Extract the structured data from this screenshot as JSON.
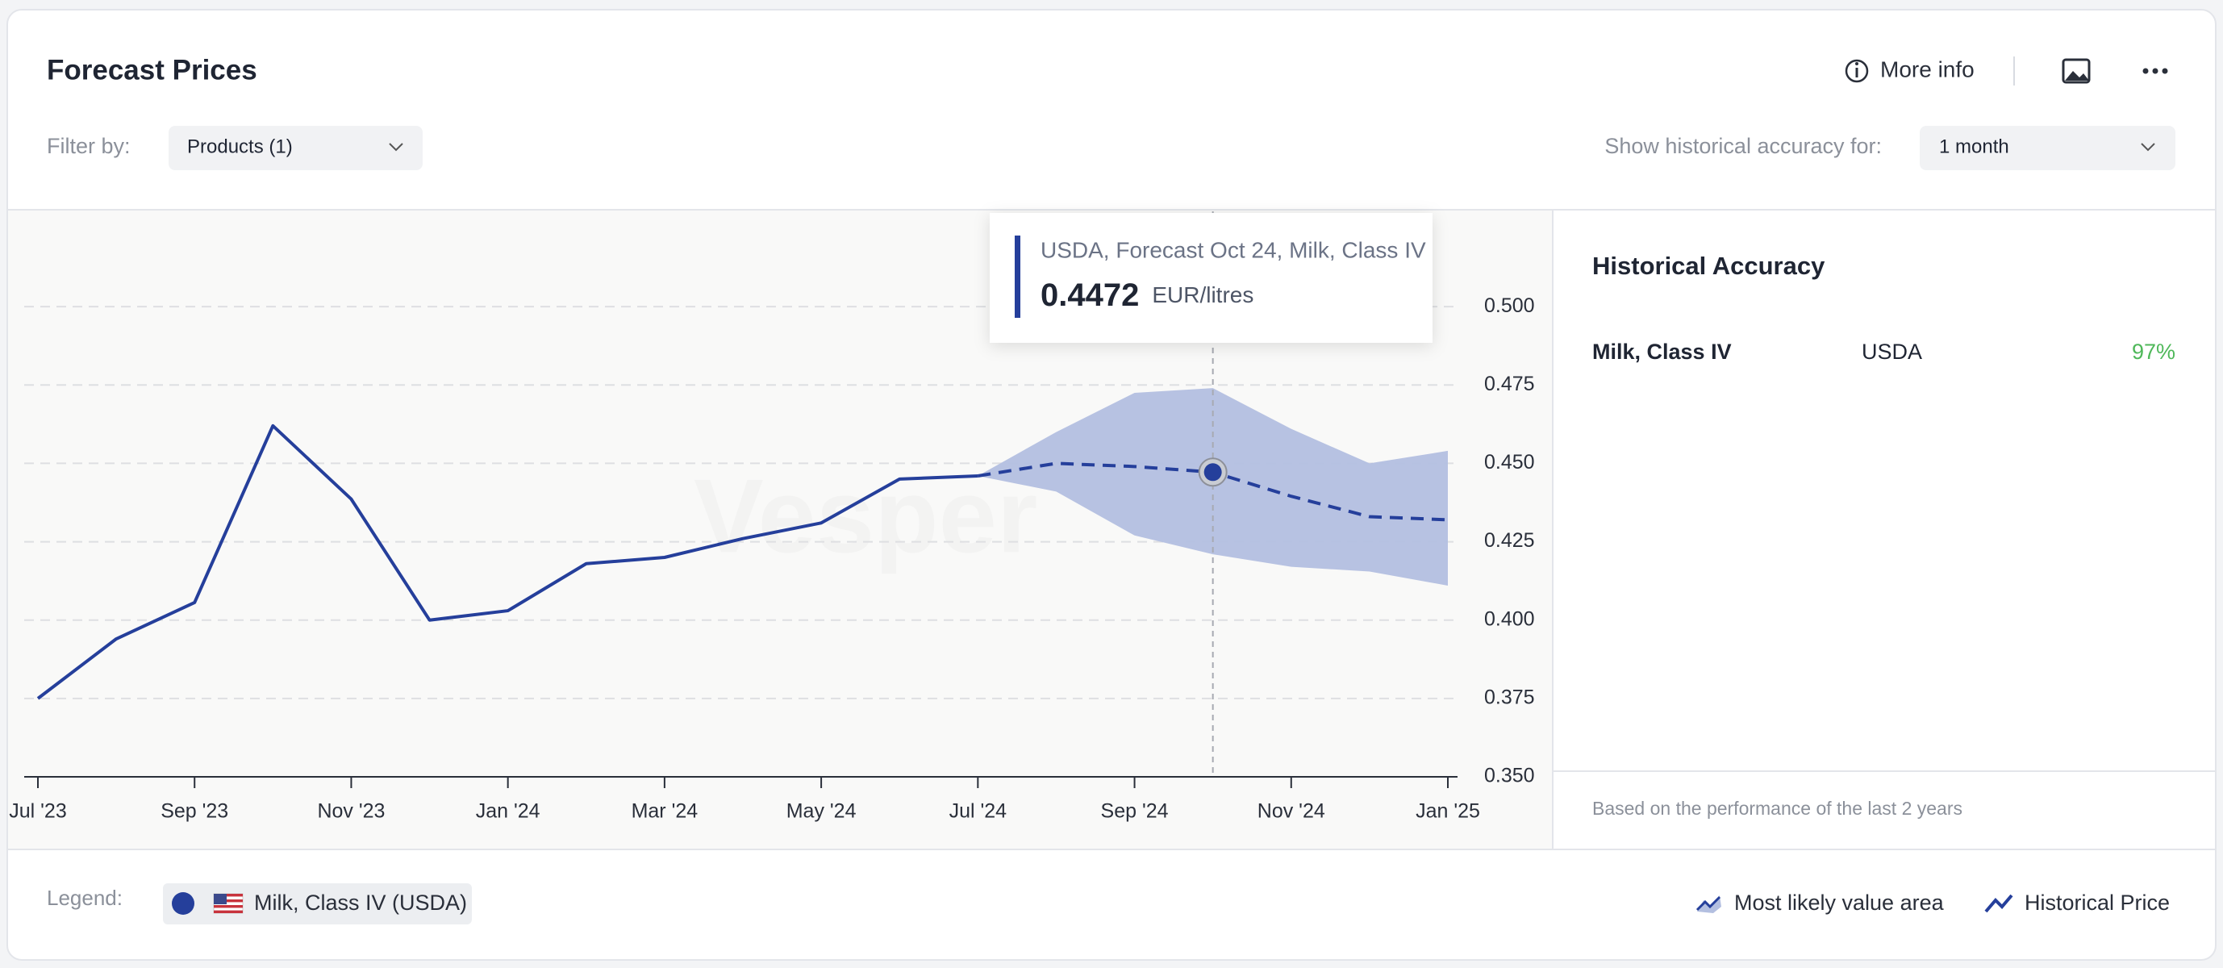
{
  "header": {
    "title": "Forecast Prices",
    "more_info": "More info"
  },
  "filters": {
    "filter_label": "Filter by:",
    "products": "Products (1)",
    "accuracy_label": "Show historical accuracy for:",
    "accuracy_period": "1 month"
  },
  "chart_data": {
    "type": "line",
    "categories": [
      "Jul '23",
      null,
      "Sep '23",
      null,
      "Nov '23",
      null,
      "Jan '24",
      null,
      "Mar '24",
      null,
      "May '24",
      null,
      "Jul '24",
      null,
      "Sep '24",
      null,
      "Nov '24",
      null,
      "Jan '25"
    ],
    "series": [
      {
        "name": "Historical Price",
        "color": "#253f9b",
        "values": [
          0.375,
          0.394,
          0.4056,
          0.462,
          0.4386,
          0.4,
          0.403,
          0.418,
          0.42,
          0.426,
          0.431,
          0.445,
          0.446,
          null,
          null,
          null,
          null,
          null,
          null
        ]
      },
      {
        "color": "#253f9b",
        "dashed": true,
        "values": [
          null,
          null,
          null,
          null,
          null,
          null,
          null,
          null,
          null,
          null,
          null,
          null,
          0.446,
          0.45,
          0.449,
          0.4472,
          0.4395,
          0.433,
          0.432
        ]
      }
    ],
    "band": {
      "name": "Most likely value area",
      "color": "#b3bfe0",
      "upper": [
        null,
        null,
        null,
        null,
        null,
        null,
        null,
        null,
        null,
        null,
        null,
        null,
        0.446,
        0.46,
        0.4725,
        0.474,
        0.461,
        0.45,
        0.454
      ],
      "lower": [
        null,
        null,
        null,
        null,
        null,
        null,
        null,
        null,
        null,
        null,
        null,
        null,
        0.446,
        0.441,
        0.427,
        0.421,
        0.417,
        0.4155,
        0.411
      ]
    },
    "ylim": [
      0.35,
      0.525
    ],
    "yticks": [
      {
        "value": 0.35,
        "label": "0.350"
      },
      {
        "value": 0.375,
        "label": "0.375"
      },
      {
        "value": 0.4,
        "label": "0.400"
      },
      {
        "value": 0.425,
        "label": "0.425"
      },
      {
        "value": 0.45,
        "label": "0.450"
      },
      {
        "value": 0.475,
        "label": "0.475"
      },
      {
        "value": 0.5,
        "label": "0.500"
      }
    ],
    "grid": true,
    "tooltip": {
      "title": "USDA, Forecast Oct 24, Milk, Class IV",
      "value": 0.4472,
      "unit": "EUR/litres"
    },
    "watermark": "Vesper"
  },
  "accuracy": {
    "title": "Historical Accuracy",
    "rows": [
      [
        "Milk, Class IV",
        "USDA",
        "97%"
      ]
    ],
    "note": "Based on the performance of the last 2 years"
  },
  "legend": {
    "label": "Legend:",
    "product": "Milk, Class IV (USDA)"
  }
}
